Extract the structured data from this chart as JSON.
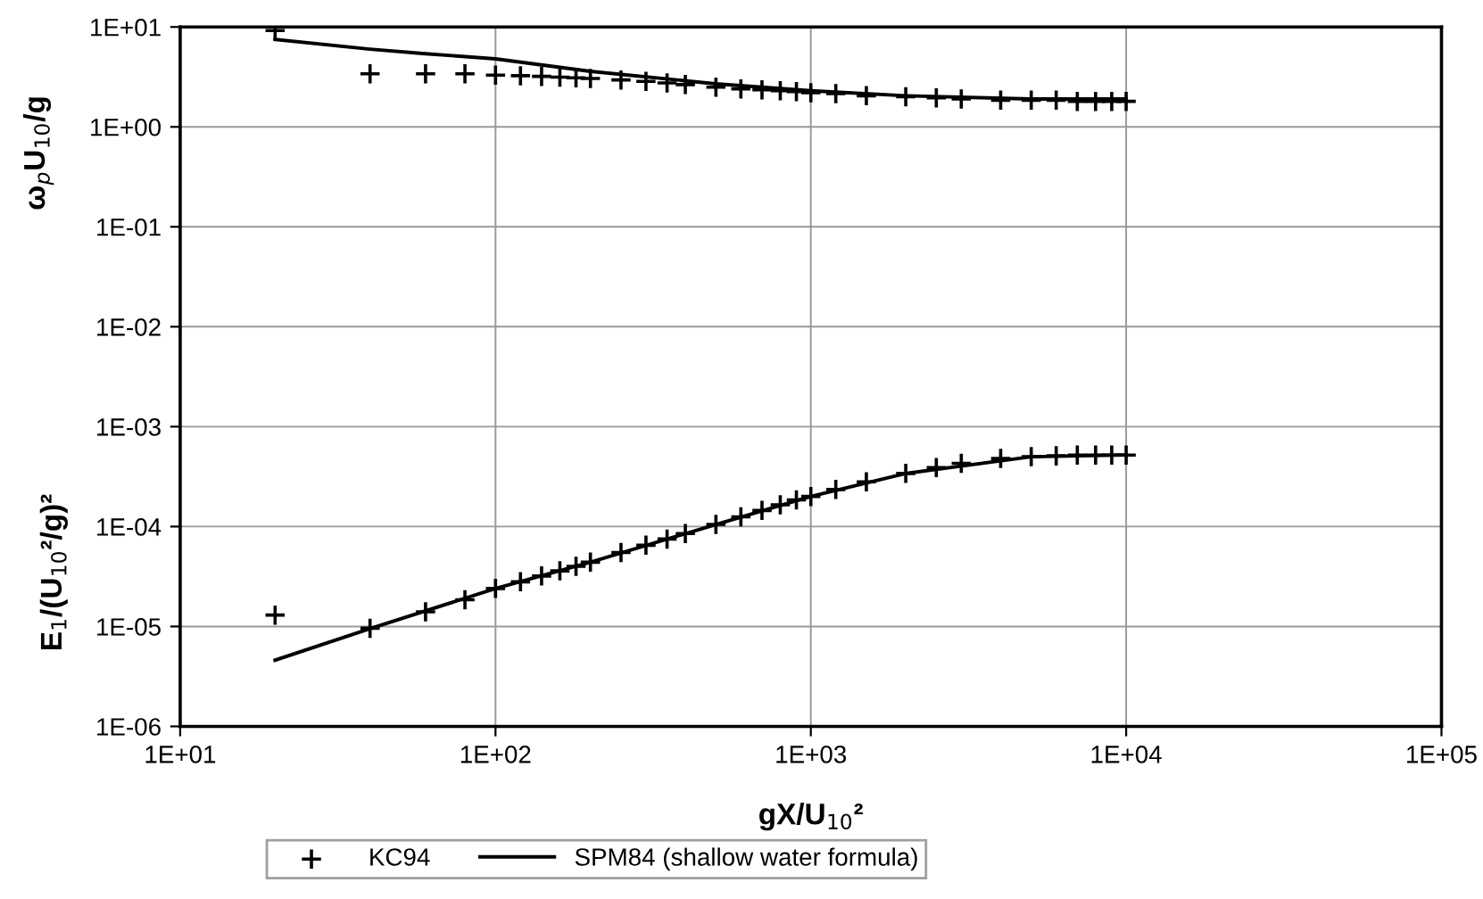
{
  "chart_data": {
    "type": "scatter",
    "xlabel": "gX/U$_{10}$²",
    "ylabel": "ω$_{p}$U$_{10}$/g",
    "annotations": [
      "E$_{1}$/(U$_{10}$²/g)²"
    ],
    "log": "xy",
    "xlim": [
      10,
      100000
    ],
    "xticks": [
      {
        "value": 10,
        "label": "1E+01"
      },
      {
        "value": 100,
        "label": "1E+02"
      },
      {
        "value": 1000,
        "label": "1E+03"
      },
      {
        "value": 10000,
        "label": "1E+04"
      },
      {
        "value": 100000,
        "label": "1E+05"
      }
    ],
    "ylim": [
      1e-06,
      10
    ],
    "yticks": [
      {
        "value": 1e-06,
        "label": "1E-06"
      },
      {
        "value": 1e-05,
        "label": "1E-05"
      },
      {
        "value": 0.0001,
        "label": "1E-04"
      },
      {
        "value": 0.001,
        "label": "1E-03"
      },
      {
        "value": 0.01,
        "label": "1E-02"
      },
      {
        "value": 0.1,
        "label": "1E-01"
      },
      {
        "value": 1,
        "label": "1E+00"
      },
      {
        "value": 10,
        "label": "1E+01"
      }
    ],
    "grid": true,
    "legend": "bottom",
    "series": [
      {
        "name": "KC94",
        "marker": "cross",
        "color": "#000000",
        "x": [
          20,
          40,
          60,
          80,
          100,
          120,
          140,
          160,
          180,
          200,
          250,
          300,
          350,
          400,
          500,
          600,
          700,
          800,
          900,
          1000,
          1200,
          1500,
          2000,
          2500,
          3000,
          4000,
          5000,
          6000,
          7000,
          8000,
          9000,
          10000
        ],
        "values": [
          9.2,
          3.4,
          3.4,
          3.4,
          3.3,
          3.25,
          3.2,
          3.15,
          3.1,
          3.05,
          2.95,
          2.85,
          2.75,
          2.65,
          2.5,
          2.4,
          2.35,
          2.3,
          2.25,
          2.2,
          2.15,
          2.05,
          2.0,
          1.95,
          1.9,
          1.85,
          1.85,
          1.85,
          1.8,
          1.8,
          1.8,
          1.8
        ]
      },
      {
        "name": "SPM84 (shallow water formula)",
        "type": "line",
        "line_style": "solid",
        "color": "#000000",
        "x": [
          20,
          40,
          60,
          100,
          200,
          500,
          1000,
          2000,
          5000,
          10000
        ],
        "values": [
          7.5,
          6.0,
          5.4,
          4.8,
          3.6,
          2.7,
          2.3,
          2.05,
          1.9,
          1.9
        ]
      },
      {
        "marker": "cross",
        "color": "#000000",
        "x": [
          20,
          40,
          60,
          80,
          100,
          120,
          140,
          160,
          180,
          200,
          250,
          300,
          350,
          400,
          500,
          600,
          700,
          800,
          900,
          1000,
          1200,
          1500,
          2000,
          2500,
          3000,
          4000,
          5000,
          6000,
          7000,
          8000,
          9000,
          10000
        ],
        "values": [
          1.3e-05,
          9.6e-06,
          1.4e-05,
          1.85e-05,
          2.4e-05,
          2.8e-05,
          3.2e-05,
          3.6e-05,
          4e-05,
          4.4e-05,
          5.5e-05,
          6.5e-05,
          7.5e-05,
          8.5e-05,
          0.000105,
          0.000125,
          0.000145,
          0.000165,
          0.000185,
          0.0002,
          0.000235,
          0.00028,
          0.00034,
          0.00039,
          0.00043,
          0.00048,
          0.0005,
          0.00051,
          0.00052,
          0.00052,
          0.00052,
          0.00052
        ]
      },
      {
        "type": "line",
        "line_style": "solid",
        "color": "#000000",
        "x": [
          20,
          40,
          100,
          200,
          500,
          1000,
          2000,
          5000,
          10000
        ],
        "values": [
          4.6e-06,
          9.5e-06,
          2.4e-05,
          4.4e-05,
          0.000105,
          0.0002,
          0.00034,
          0.0005,
          0.00052
        ]
      }
    ]
  }
}
